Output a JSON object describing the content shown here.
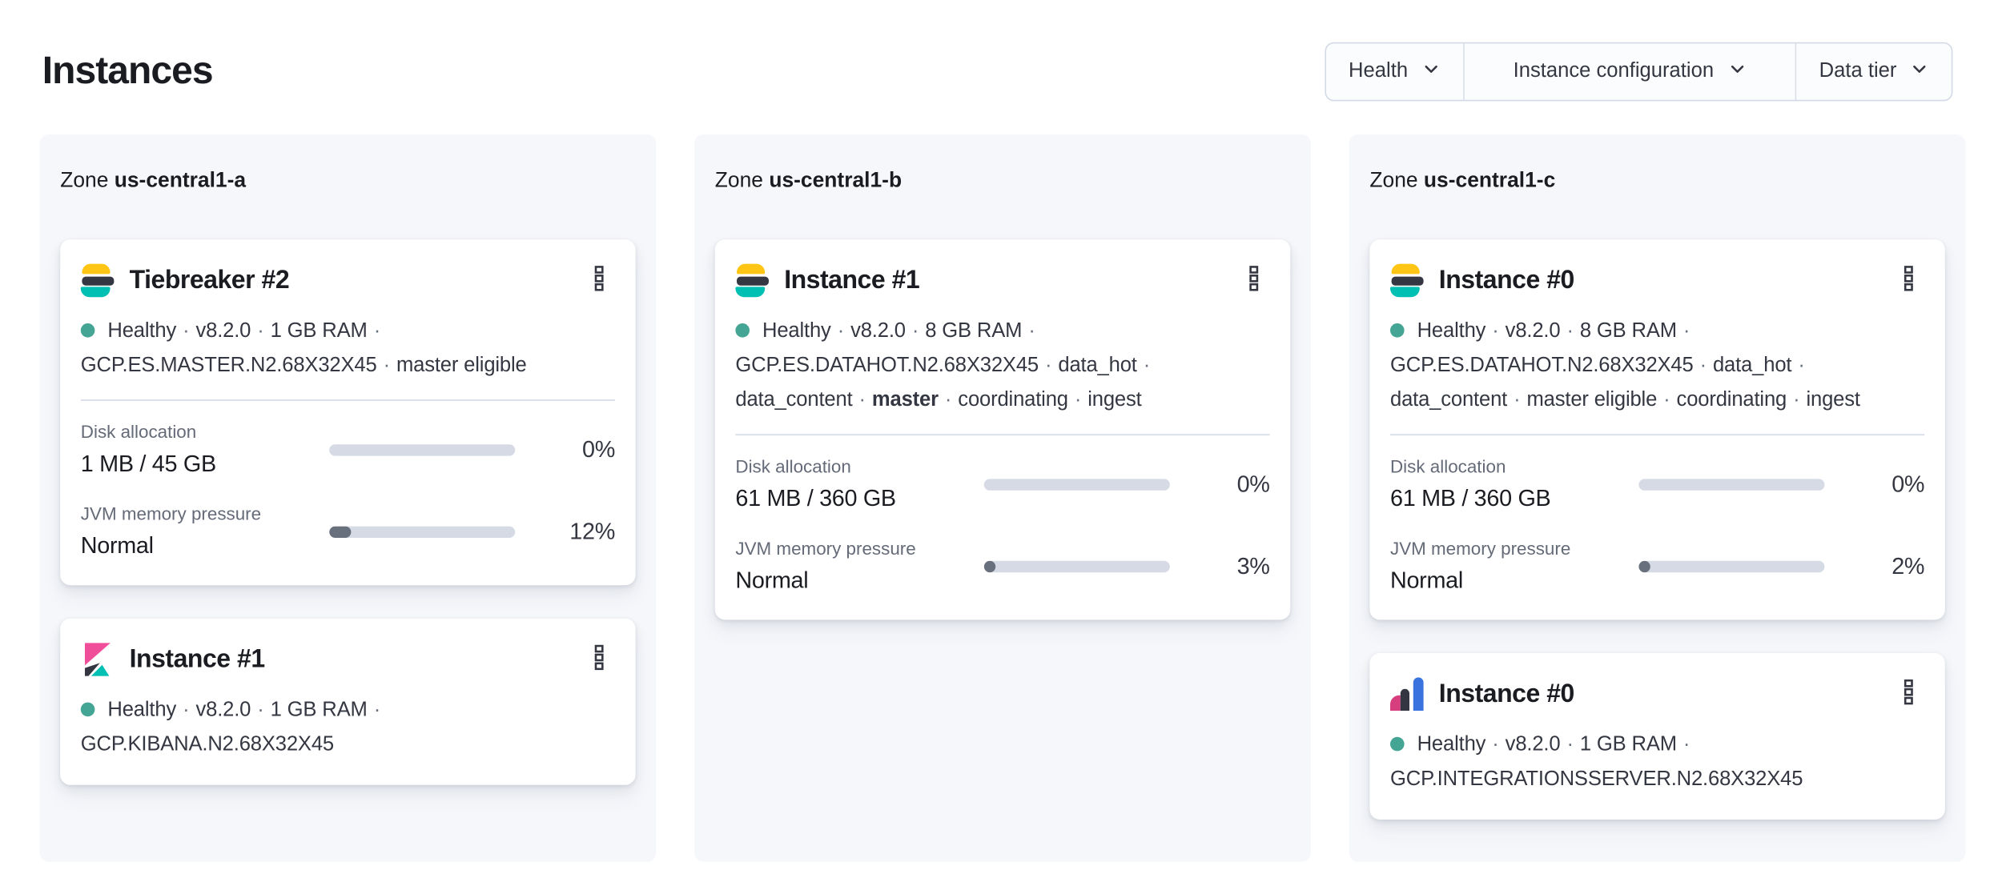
{
  "page": {
    "title": "Instances"
  },
  "filters": [
    {
      "label": "Health"
    },
    {
      "label": "Instance configuration"
    },
    {
      "label": "Data tier"
    }
  ],
  "zones": [
    {
      "label_prefix": "Zone",
      "name": "us-central1-a",
      "cards": [
        {
          "logo": "elasticsearch",
          "title": "Tiebreaker #2",
          "meta_lines": [
            [
              {
                "t": "Healthy"
              },
              {
                "t": "·",
                "sep": true
              },
              {
                "t": "v8.2.0"
              },
              {
                "t": "·",
                "sep": true
              },
              {
                "t": "1 GB RAM"
              },
              {
                "t": "·",
                "sep": true
              }
            ],
            [
              {
                "t": "GCP.ES.MASTER.N2.68X32X45"
              },
              {
                "t": "·",
                "sep": true
              },
              {
                "t": "master eligible"
              }
            ]
          ],
          "metrics": [
            {
              "label": "Disk allocation",
              "value": "1 MB / 45 GB",
              "percent_label": "0%",
              "percent_value": 0
            },
            {
              "label": "JVM memory pressure",
              "value": "Normal",
              "percent_label": "12%",
              "percent_value": 12
            }
          ]
        },
        {
          "logo": "kibana",
          "title": "Instance #1",
          "meta_lines": [
            [
              {
                "t": "Healthy"
              },
              {
                "t": "·",
                "sep": true
              },
              {
                "t": "v8.2.0"
              },
              {
                "t": "·",
                "sep": true
              },
              {
                "t": "1 GB RAM"
              },
              {
                "t": "·",
                "sep": true
              }
            ],
            [
              {
                "t": "GCP.KIBANA.N2.68X32X45"
              }
            ]
          ],
          "metrics": []
        }
      ]
    },
    {
      "label_prefix": "Zone",
      "name": "us-central1-b",
      "cards": [
        {
          "logo": "elasticsearch",
          "title": "Instance #1",
          "meta_lines": [
            [
              {
                "t": "Healthy"
              },
              {
                "t": "·",
                "sep": true
              },
              {
                "t": "v8.2.0"
              },
              {
                "t": "·",
                "sep": true
              },
              {
                "t": "8 GB RAM"
              },
              {
                "t": "·",
                "sep": true
              }
            ],
            [
              {
                "t": "GCP.ES.DATAHOT.N2.68X32X45"
              },
              {
                "t": "·",
                "sep": true
              },
              {
                "t": "data_hot"
              },
              {
                "t": "·",
                "sep": true
              }
            ],
            [
              {
                "t": "data_content"
              },
              {
                "t": "·",
                "sep": true
              },
              {
                "t": "master",
                "bold": true
              },
              {
                "t": "·",
                "sep": true
              },
              {
                "t": "coordinating"
              },
              {
                "t": "·",
                "sep": true
              },
              {
                "t": "ingest"
              }
            ]
          ],
          "metrics": [
            {
              "label": "Disk allocation",
              "value": "61 MB / 360 GB",
              "percent_label": "0%",
              "percent_value": 0
            },
            {
              "label": "JVM memory pressure",
              "value": "Normal",
              "percent_label": "3%",
              "percent_value": 3
            }
          ]
        }
      ]
    },
    {
      "label_prefix": "Zone",
      "name": "us-central1-c",
      "cards": [
        {
          "logo": "elasticsearch",
          "title": "Instance #0",
          "meta_lines": [
            [
              {
                "t": "Healthy"
              },
              {
                "t": "·",
                "sep": true
              },
              {
                "t": "v8.2.0"
              },
              {
                "t": "·",
                "sep": true
              },
              {
                "t": "8 GB RAM"
              },
              {
                "t": "·",
                "sep": true
              }
            ],
            [
              {
                "t": "GCP.ES.DATAHOT.N2.68X32X45"
              },
              {
                "t": "·",
                "sep": true
              },
              {
                "t": "data_hot"
              },
              {
                "t": "·",
                "sep": true
              }
            ],
            [
              {
                "t": "data_content"
              },
              {
                "t": "·",
                "sep": true
              },
              {
                "t": "master eligible"
              },
              {
                "t": "·",
                "sep": true
              },
              {
                "t": "coordinating"
              },
              {
                "t": "·",
                "sep": true
              },
              {
                "t": "ingest"
              }
            ]
          ],
          "metrics": [
            {
              "label": "Disk allocation",
              "value": "61 MB / 360 GB",
              "percent_label": "0%",
              "percent_value": 0
            },
            {
              "label": "JVM memory pressure",
              "value": "Normal",
              "percent_label": "2%",
              "percent_value": 2
            }
          ]
        },
        {
          "logo": "integrations-server",
          "title": "Instance #0",
          "meta_lines": [
            [
              {
                "t": "Healthy"
              },
              {
                "t": "·",
                "sep": true
              },
              {
                "t": "v8.2.0"
              },
              {
                "t": "·",
                "sep": true
              },
              {
                "t": "1 GB RAM"
              },
              {
                "t": "·",
                "sep": true
              }
            ],
            [
              {
                "t": "GCP.INTEGRATIONSSERVER.N2.68X32X45"
              }
            ]
          ],
          "metrics": []
        }
      ]
    }
  ],
  "status": {
    "healthy_dot_color": "#44a594"
  },
  "colors": {
    "panel_bg": "#f6f7fb",
    "divider": "#d3dae6",
    "bar_track": "#d6dae5",
    "bar_fill": "#69707d",
    "logo_yellow": "#fec514",
    "logo_teal": "#00bfb3",
    "logo_dark": "#343741",
    "logo_pink": "#f04e98",
    "logo_magenta": "#d63e7e",
    "logo_blue": "#3b73de"
  }
}
